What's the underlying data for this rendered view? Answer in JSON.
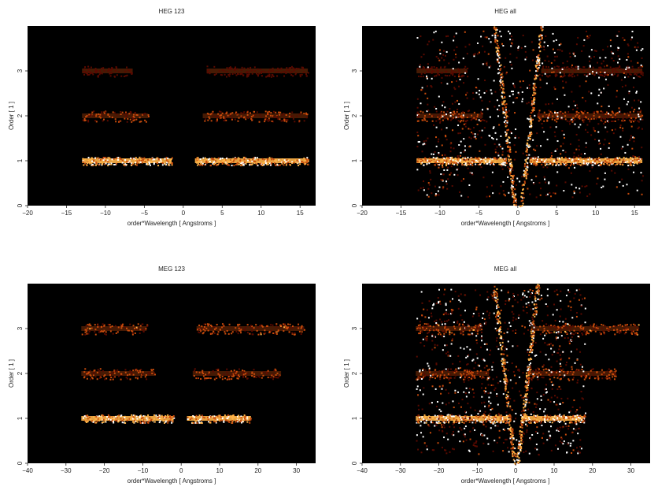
{
  "chart_data": [
    {
      "type": "heatmap",
      "title": "HEG 123",
      "xlabel": "order*Wavelength [ Angstroms ]",
      "ylabel": "Order [ 1 ]",
      "xlim": [
        -20,
        17
      ],
      "ylim": [
        0,
        4
      ],
      "xticks": [
        "−20",
        "−15",
        "−10",
        "−5",
        "0",
        "5",
        "10",
        "15"
      ],
      "yticks": [
        "0",
        "1",
        "2",
        "3"
      ],
      "grid": false,
      "bands": [
        {
          "order": 1,
          "x_ranges": [
            [
              -13,
              -1.5
            ],
            [
              1.5,
              16
            ]
          ],
          "intensity": 0.95
        },
        {
          "order": 2,
          "x_ranges": [
            [
              -13,
              -4.5
            ],
            [
              2.5,
              16
            ]
          ],
          "intensity": 0.6
        },
        {
          "order": 3,
          "x_ranges": [
            [
              -13,
              -6.5
            ],
            [
              3.0,
              16
            ]
          ],
          "intensity": 0.4
        }
      ],
      "zeroth_order_streak": false
    },
    {
      "type": "heatmap",
      "title": "HEG all",
      "xlabel": "order*Wavelength [ Angstroms ]",
      "ylabel": "Order [ 1 ]",
      "xlim": [
        -20,
        17
      ],
      "ylim": [
        0,
        4
      ],
      "xticks": [
        "−20",
        "−15",
        "−10",
        "−5",
        "0",
        "5",
        "10",
        "15"
      ],
      "yticks": [
        "0",
        "1",
        "2",
        "3"
      ],
      "grid": false,
      "bands": [
        {
          "order": 1,
          "x_ranges": [
            [
              -13,
              -1.5
            ],
            [
              1.5,
              16
            ]
          ],
          "intensity": 0.95
        },
        {
          "order": 2,
          "x_ranges": [
            [
              -13,
              -4.5
            ],
            [
              2.5,
              16
            ]
          ],
          "intensity": 0.6
        },
        {
          "order": 3,
          "x_ranges": [
            [
              -13,
              -6.5
            ],
            [
              3.0,
              16
            ]
          ],
          "intensity": 0.4
        }
      ],
      "zeroth_order_streak": true
    },
    {
      "type": "heatmap",
      "title": "MEG 123",
      "xlabel": "order*Wavelength [ Angstroms ]",
      "ylabel": "Order [ 1 ]",
      "xlim": [
        -40,
        35
      ],
      "ylim": [
        0,
        4
      ],
      "xticks": [
        "−40",
        "−30",
        "−20",
        "−10",
        "0",
        "10",
        "20",
        "30"
      ],
      "yticks": [
        "0",
        "1",
        "2",
        "3"
      ],
      "grid": false,
      "bands": [
        {
          "order": 1,
          "x_ranges": [
            [
              -26,
              -2
            ],
            [
              1.5,
              18
            ]
          ],
          "intensity": 0.95
        },
        {
          "order": 2,
          "x_ranges": [
            [
              -26,
              -7
            ],
            [
              3,
              26
            ]
          ],
          "intensity": 0.6
        },
        {
          "order": 3,
          "x_ranges": [
            [
              -26,
              -9
            ],
            [
              4,
              32
            ]
          ],
          "intensity": 0.65
        }
      ],
      "zeroth_order_streak": false
    },
    {
      "type": "heatmap",
      "title": "MEG all",
      "xlabel": "order*Wavelength [ Angstroms ]",
      "ylabel": "Order [ 1 ]",
      "xlim": [
        -40,
        35
      ],
      "ylim": [
        0,
        4
      ],
      "xticks": [
        "−40",
        "−30",
        "−20",
        "−10",
        "0",
        "10",
        "20",
        "30"
      ],
      "yticks": [
        "0",
        "1",
        "2",
        "3"
      ],
      "grid": false,
      "bands": [
        {
          "order": 1,
          "x_ranges": [
            [
              -26,
              -2
            ],
            [
              1.5,
              18
            ]
          ],
          "intensity": 0.95
        },
        {
          "order": 2,
          "x_ranges": [
            [
              -26,
              -7
            ],
            [
              3,
              26
            ]
          ],
          "intensity": 0.6
        },
        {
          "order": 3,
          "x_ranges": [
            [
              -26,
              -9
            ],
            [
              4,
              32
            ]
          ],
          "intensity": 0.65
        }
      ],
      "zeroth_order_streak": true
    }
  ],
  "colors": {
    "background": "#000000",
    "low": "#5a0a00",
    "mid": "#c84b0c",
    "high": "#ffb347",
    "peak": "#ffffff"
  }
}
